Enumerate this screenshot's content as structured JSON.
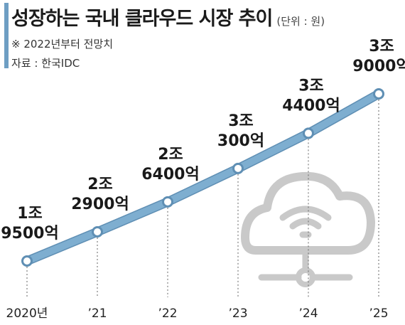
{
  "header": {
    "title": "성장하는 국내 클라우드 시장 추이",
    "unit": "(단위 : 원)",
    "note": "※ 2022년부터 전망치",
    "source": "자료 : 한국IDC"
  },
  "chart_data": {
    "type": "line",
    "x": [
      "2020년",
      "’21",
      "’22",
      "’23",
      "’24",
      "’25"
    ],
    "values": [
      19500,
      22900,
      26400,
      30300,
      34400,
      39000
    ],
    "value_unit": "억",
    "data_labels": [
      [
        "1조",
        "9500억"
      ],
      [
        "2조",
        "2900억"
      ],
      [
        "2조",
        "6400억"
      ],
      [
        "3조",
        "300억"
      ],
      [
        "3조",
        "4400억"
      ],
      [
        "3조",
        "9000억"
      ]
    ],
    "line_color": "#7eaed0",
    "marker_fill": "#ffffff",
    "grid_vertical_dashed": true,
    "icon": "cloud-network-icon"
  }
}
